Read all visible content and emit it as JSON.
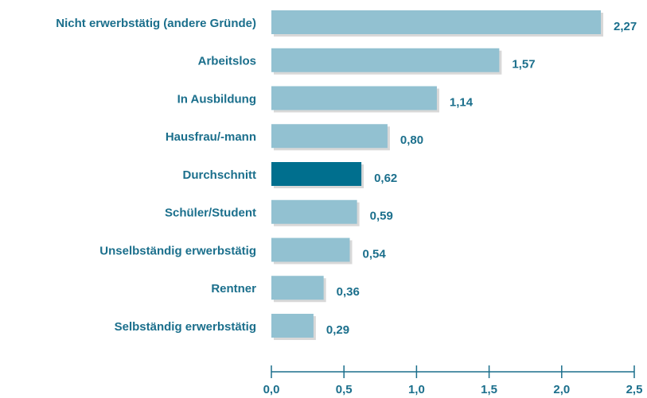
{
  "chart_data": {
    "type": "hbar",
    "categories": [
      "Nicht erwerbstätig (andere Gründe)",
      "Arbeitslos",
      "In Ausbildung",
      "Hausfrau/-mann",
      "Durchschnitt",
      "Schüler/Student",
      "Unselbständig erwerbstätig",
      "Rentner",
      "Selbständig erwerbstätig"
    ],
    "values": [
      2.27,
      1.57,
      1.14,
      0.8,
      0.62,
      0.59,
      0.54,
      0.36,
      0.29
    ],
    "value_labels": [
      "2,27",
      "1,57",
      "1,14",
      "0,80",
      "0,62",
      "0,59",
      "0,54",
      "0,36",
      "0,29"
    ],
    "colors": [
      "#92c1d1",
      "#92c1d1",
      "#92c1d1",
      "#92c1d1",
      "#006f8e",
      "#92c1d1",
      "#92c1d1",
      "#92c1d1",
      "#92c1d1"
    ],
    "xlim": [
      0,
      2.5
    ],
    "xticks": [
      {
        "value": 0,
        "label": "0,0"
      },
      {
        "value": 0.5,
        "label": "0,5"
      },
      {
        "value": 1,
        "label": "1,0"
      },
      {
        "value": 1.5,
        "label": "1,5"
      },
      {
        "value": 2,
        "label": "2,0"
      },
      {
        "value": 2.5,
        "label": "2,5"
      }
    ]
  }
}
